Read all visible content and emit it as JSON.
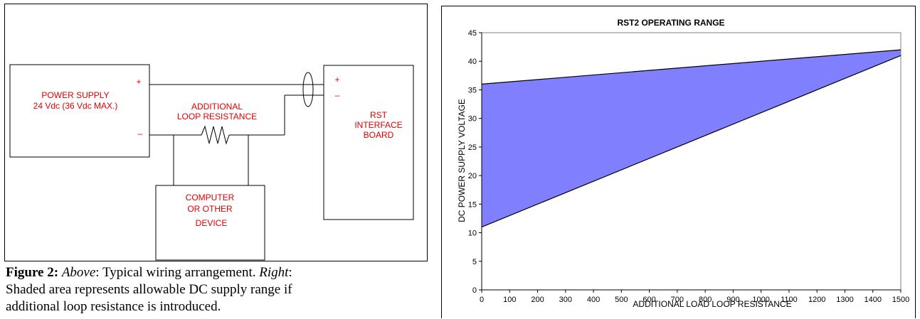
{
  "diagram": {
    "power_supply": {
      "line1": "POWER SUPPLY",
      "line2": "24 Vdc (36 Vdc MAX.)",
      "plus": "+",
      "minus": "–"
    },
    "resistor": {
      "line1": "ADDITIONAL",
      "line2": "LOOP  RESISTANCE"
    },
    "rst_board": {
      "line1": "RST",
      "line2": "INTERFACE",
      "line3": "BOARD",
      "plus": "+",
      "minus": "–"
    },
    "computer": {
      "line1": "COMPUTER",
      "line2": "OR  OTHER",
      "line3": "DEVICE"
    },
    "label_color": "#e00000"
  },
  "caption": {
    "figure_label": "Figure 2:",
    "above_label": "Above",
    "above_text": ": Typical wiring arrangement. ",
    "right_label": "Right",
    "right_text": ":",
    "line2": "Shaded area represents allowable DC supply range if",
    "line3": "additional loop resistance is introduced."
  },
  "chart_data": {
    "type": "area",
    "title": "RST2 OPERATING RANGE",
    "xlabel": "ADDITIONAL LOAD LOOP RESISTANCE",
    "ylabel": "DC POWER SUPPLY VOLTAGE",
    "xlim": [
      0,
      1500
    ],
    "ylim": [
      0,
      45
    ],
    "x_ticks": [
      0,
      100,
      200,
      300,
      400,
      500,
      600,
      700,
      800,
      900,
      1000,
      1100,
      1200,
      1300,
      1400,
      1500
    ],
    "y_ticks": [
      0,
      5,
      10,
      15,
      20,
      25,
      30,
      35,
      40,
      45
    ],
    "series": [
      {
        "role": "upper_bound",
        "x": [
          0,
          1500
        ],
        "y": [
          36,
          42
        ]
      },
      {
        "role": "lower_bound",
        "x": [
          0,
          1500
        ],
        "y": [
          11,
          41
        ]
      }
    ],
    "fill_color": "#8080ff",
    "line_color": "#000000",
    "grid": false
  }
}
